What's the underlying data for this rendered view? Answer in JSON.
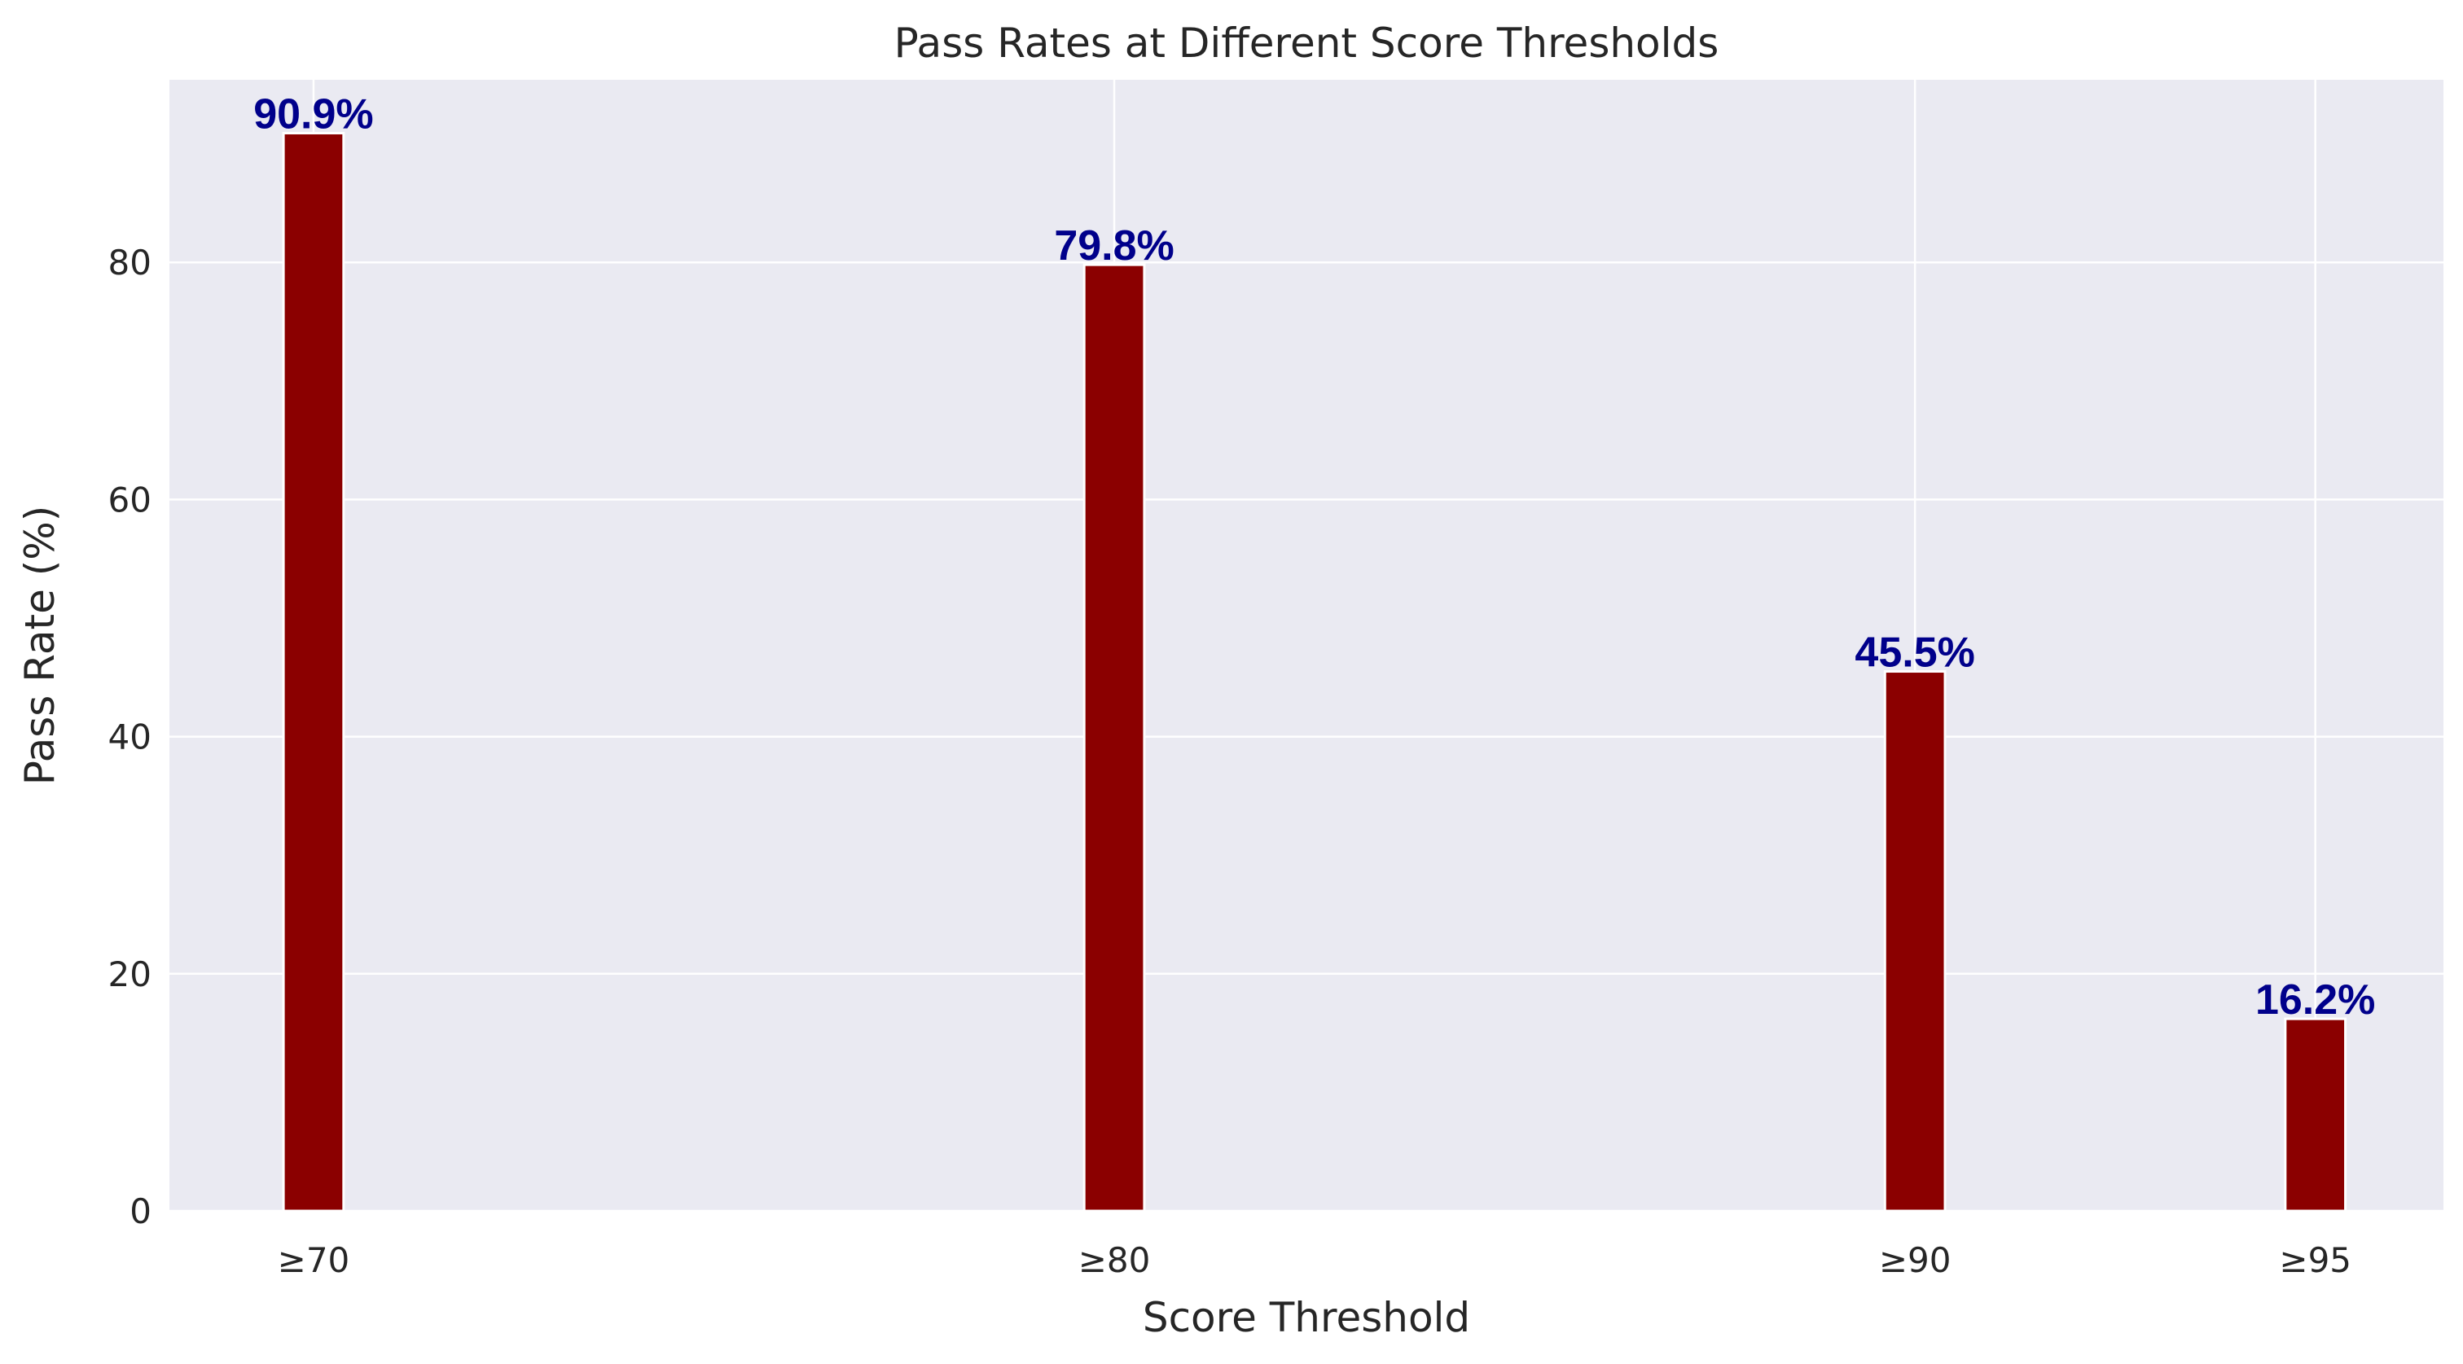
{
  "chart_data": {
    "type": "bar",
    "title": "Pass Rates at Different Score Thresholds",
    "xlabel": "Score Threshold",
    "ylabel": "Pass Rate (%)",
    "x": [
      70,
      80,
      90,
      95
    ],
    "categories": [
      "≥70",
      "≥80",
      "≥90",
      "≥95"
    ],
    "values": [
      90.9,
      79.8,
      45.5,
      16.2
    ],
    "data_labels": [
      "90.9%",
      "79.8%",
      "45.5%",
      "16.2%"
    ],
    "xlim": [
      68.2,
      96.6
    ],
    "ylim": [
      0,
      95.4
    ],
    "yticks": [
      0,
      20,
      40,
      60,
      80
    ],
    "ytick_labels": [
      "0",
      "20",
      "40",
      "60",
      "80"
    ],
    "bar_width": 0.75,
    "grid": true,
    "colors": {
      "bar": "#8b0000",
      "bar_edge": "#ffffff",
      "data_label": "#00008b",
      "plot_background": "#eaeaf2",
      "grid": "#ffffff"
    }
  }
}
